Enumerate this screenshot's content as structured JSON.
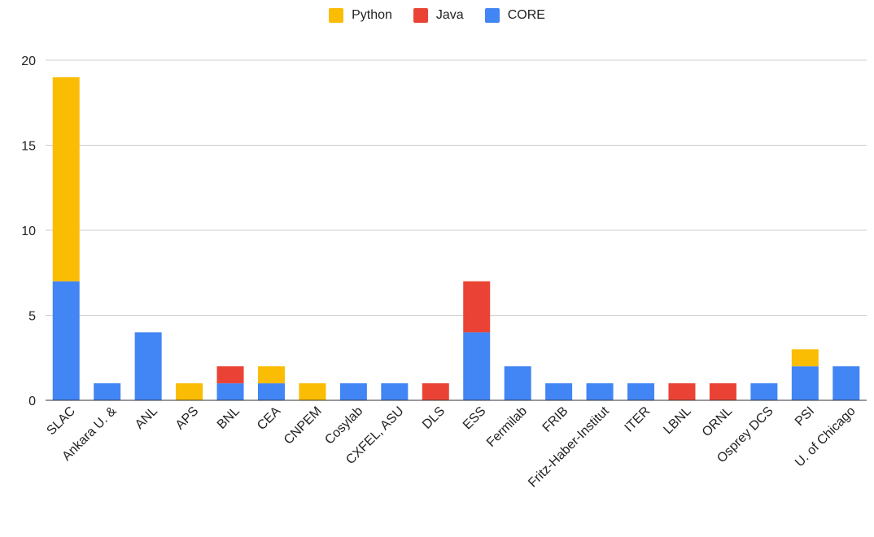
{
  "chart_data": {
    "type": "bar",
    "stacked": true,
    "title": "",
    "xlabel": "",
    "ylabel": "",
    "ylim": [
      0,
      20
    ],
    "yticks": [
      0,
      5,
      10,
      15,
      20
    ],
    "grid": true,
    "legend_position": "top-center",
    "categories": [
      "SLAC",
      "Ankara U. &",
      "ANL",
      "APS",
      "BNL",
      "CEA",
      "CNPEM",
      "Cosylab",
      "CXFEL, ASU",
      "DLS",
      "ESS",
      "Fermilab",
      "FRIB",
      "Fritz-Haber-Institut",
      "ITER",
      "LBNL",
      "ORNL",
      "Osprey DCS",
      "PSI",
      "U. of Chicago"
    ],
    "series": [
      {
        "name": "CORE",
        "color": "#4285f4",
        "values": [
          7,
          1,
          4,
          0,
          1,
          1,
          0,
          1,
          1,
          0,
          4,
          2,
          1,
          1,
          1,
          0,
          0,
          1,
          2,
          2
        ]
      },
      {
        "name": "Java",
        "color": "#ea4335",
        "values": [
          0,
          0,
          0,
          0,
          1,
          0,
          0,
          0,
          0,
          1,
          3,
          0,
          0,
          0,
          0,
          1,
          1,
          0,
          0,
          0
        ]
      },
      {
        "name": "Python",
        "color": "#fbbc04",
        "values": [
          12,
          0,
          0,
          1,
          0,
          1,
          1,
          0,
          0,
          0,
          0,
          0,
          0,
          0,
          0,
          0,
          0,
          0,
          1,
          0
        ]
      }
    ],
    "legend_order": [
      "Python",
      "Java",
      "CORE"
    ]
  }
}
